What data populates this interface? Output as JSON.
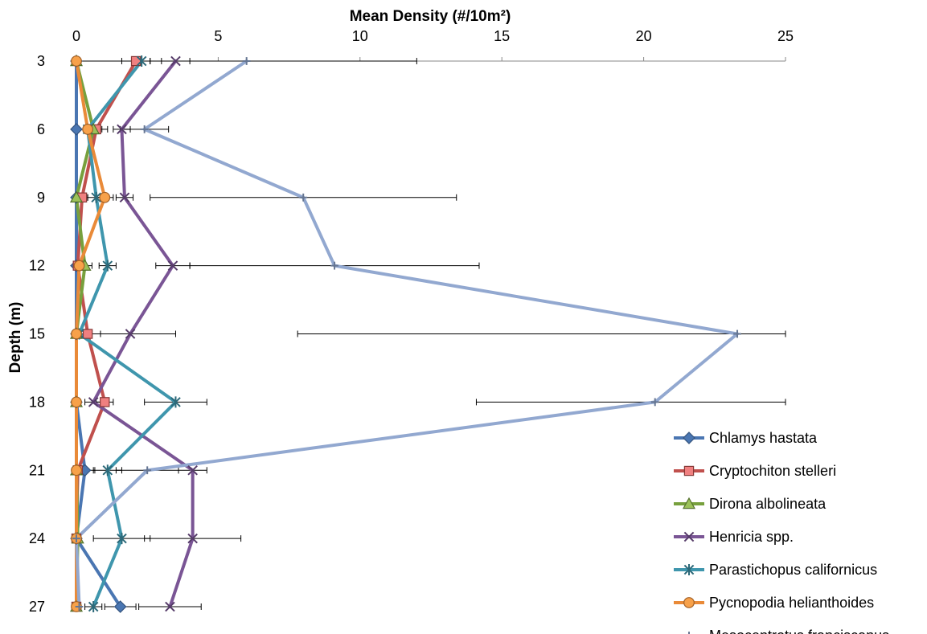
{
  "chart_data": {
    "type": "line",
    "orientation": "depth-profile",
    "xlabel": "Mean Density (#/10m²)",
    "ylabel": "Depth (m)",
    "xlim": [
      0,
      25
    ],
    "x_ticks": [
      0,
      5,
      10,
      15,
      20,
      25
    ],
    "depths": [
      3,
      6,
      9,
      12,
      15,
      18,
      21,
      24,
      27
    ],
    "legend_position": "bottom-right",
    "grid": false,
    "series": [
      {
        "name": "Chlamys hastata",
        "color": "#4a76b2",
        "marker": "diamond",
        "values": [
          0,
          0,
          0,
          0,
          0,
          0,
          0.3,
          0,
          1.55
        ],
        "errors": [
          0,
          0,
          0,
          0,
          0,
          0,
          0.35,
          0,
          0.55
        ]
      },
      {
        "name": "Cryptochiton stelleri",
        "color": "#c0504d",
        "marker": "square",
        "values": [
          2.1,
          0.7,
          0.2,
          0.05,
          0.4,
          1.0,
          0.05,
          0,
          0
        ],
        "errors": [
          0.5,
          0.4,
          0.2,
          0.15,
          0.45,
          0.3,
          0.1,
          0,
          0
        ]
      },
      {
        "name": "Dirona albolineata",
        "color": "#77a03d",
        "marker": "triangle",
        "values": [
          0,
          0.6,
          0,
          0.3,
          0,
          0,
          0,
          0.05,
          0
        ],
        "errors": [
          0,
          0.3,
          0,
          0.25,
          0,
          0,
          0,
          0.1,
          0
        ]
      },
      {
        "name": "Henricia spp.",
        "color": "#7a5595",
        "marker": "x",
        "values": [
          3.5,
          1.6,
          1.7,
          3.4,
          1.9,
          0.6,
          4.1,
          4.1,
          3.3
        ],
        "errors": [
          0.5,
          0.3,
          0.3,
          0.6,
          1.6,
          0.3,
          0.5,
          1.7,
          1.1
        ]
      },
      {
        "name": "Parastichopus californicus",
        "color": "#3f96ad",
        "marker": "asterisk",
        "values": [
          2.3,
          0.4,
          0.7,
          1.1,
          0.1,
          3.5,
          1.1,
          1.6,
          0.6
        ],
        "errors": [
          0.3,
          0.3,
          0.3,
          0.3,
          0.2,
          1.1,
          0.5,
          1.0,
          0.3
        ]
      },
      {
        "name": "Pycnopodia helianthoides",
        "color": "#e98a38",
        "marker": "circle",
        "values": [
          0,
          0.4,
          1.0,
          0.1,
          0,
          0,
          0,
          0,
          0
        ],
        "errors": [
          0,
          0.3,
          0.3,
          0.2,
          0,
          0,
          0,
          0,
          0
        ]
      },
      {
        "name": "Mesocentrotus franciscanus",
        "color": "#92a8d0",
        "marker": "plus",
        "values": [
          6.0,
          2.4,
          8.0,
          9.1,
          23.3,
          20.4,
          2.5,
          0,
          0.1
        ],
        "errors": [
          6.0,
          0.85,
          5.4,
          5.1,
          15.5,
          6.3,
          1.1,
          0,
          0
        ]
      }
    ]
  }
}
